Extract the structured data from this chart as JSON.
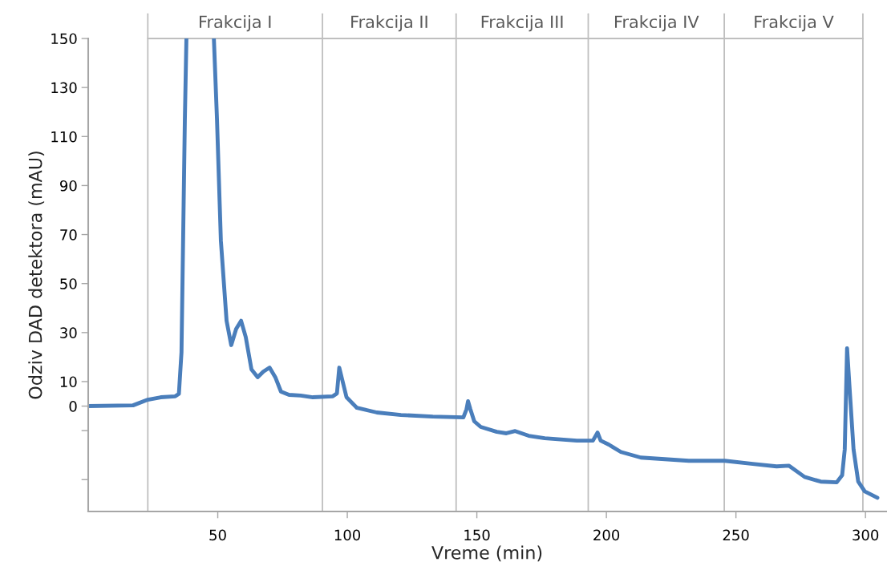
{
  "chart_data": {
    "type": "line",
    "xlabel": "Vreme (min)",
    "ylabel": "Odziv DAD detektora (mAU)",
    "xlim": [
      0,
      308
    ],
    "xticks": [
      50,
      100,
      150,
      200,
      250,
      300
    ],
    "ylim": [
      -43,
      150
    ],
    "yticks": [
      {
        "value": -30,
        "label": null
      },
      {
        "value": -10,
        "label": null
      },
      0,
      10,
      30,
      50,
      70,
      90,
      110,
      130,
      150
    ],
    "grid": false,
    "legend": false,
    "ref_lines": [
      {
        "axis": "x",
        "value": 23,
        "color": "#bfbfbf"
      },
      {
        "axis": "x",
        "value": 90.4,
        "color": "#bfbfbf"
      },
      {
        "axis": "x",
        "value": 142,
        "color": "#bfbfbf"
      },
      {
        "axis": "x",
        "value": 193,
        "color": "#bfbfbf"
      },
      {
        "axis": "x",
        "value": 245.5,
        "color": "#bfbfbf"
      },
      {
        "axis": "x",
        "value": 299,
        "color": "#bfbfbf"
      }
    ],
    "annotations": [
      "Frakcija I",
      "Frakcija II",
      "Frakcija III",
      "Frakcija IV",
      "Frakcija V"
    ],
    "series": [
      {
        "color": "#4a7ebb",
        "x": [
          0,
          17.3,
          23,
          28,
          33.6,
          35,
          36,
          37.3,
          37.9,
          43.5,
          48.5,
          49.7,
          51.2,
          53.4,
          55.2,
          57.1,
          59,
          60.8,
          63,
          65.4,
          67.6,
          70,
          72.2,
          74.4,
          77.5,
          82,
          86.7,
          94.4,
          96,
          96.9,
          97.8,
          99.7,
          103.7,
          111.4,
          120.7,
          133,
          144.8,
          146,
          146.6,
          147.5,
          149,
          151.5,
          157.7,
          161.4,
          164.8,
          170,
          176.2,
          188.6,
          194.8,
          196.6,
          197.8,
          200.9,
          205.6,
          213.3,
          231.8,
          245.7,
          256.5,
          265.7,
          270.4,
          276.5,
          282.7,
          288.9,
          291,
          292,
          292.9,
          293.8,
          295.4,
          297.2,
          299.7,
          304.6
        ],
        "values": [
          0,
          0.3,
          2.6,
          3.6,
          4,
          5,
          22,
          117,
          150,
          null,
          150,
          117,
          67.5,
          34.8,
          24.9,
          31.5,
          34.8,
          28.2,
          15,
          11.8,
          14.1,
          15.7,
          11.8,
          5.9,
          4.6,
          4.3,
          3.6,
          4,
          5.2,
          15.7,
          11.8,
          3.6,
          -0.7,
          -2.6,
          -3.6,
          -4.3,
          -4.6,
          -1.3,
          2,
          -1.3,
          -6.2,
          -8.5,
          -10.5,
          -11.1,
          -10.2,
          -12.1,
          -13.1,
          -14.1,
          -14.1,
          -10.8,
          -14.1,
          -15.7,
          -18.7,
          -21,
          -22.3,
          -22.3,
          -23.6,
          -24.6,
          -24.3,
          -28.9,
          -30.8,
          -31.1,
          -28.2,
          -17.7,
          23.6,
          8.5,
          -17.7,
          -30.8,
          -34.8,
          -37.4
        ]
      }
    ]
  }
}
